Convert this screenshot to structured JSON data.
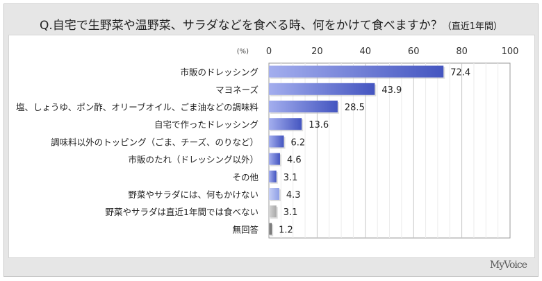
{
  "title": {
    "main": "Q.自宅で生野菜や温野菜、サラダなどを食べる時、何をかけて食べますか？",
    "sub": "（直近1年間）"
  },
  "logo": "MyVoice",
  "chart_data": {
    "type": "bar",
    "orientation": "horizontal",
    "unit_label": "(%)",
    "xlim": [
      0,
      100
    ],
    "ticks": [
      "0",
      "20",
      "40",
      "60",
      "80",
      "100"
    ],
    "categories": [
      "市販のドレッシング",
      "マヨネーズ",
      "塩、しょうゆ、ポン酢、オリーブオイル、ごま油などの調味料",
      "自宅で作ったドレッシング",
      "調味料以外のトッピング（ごま、チーズ、のりなど）",
      "市販のたれ（ドレッシング以外）",
      "その他",
      "野菜やサラダには、何もかけない",
      "野菜やサラダは直近1年間では食べない",
      "無回答"
    ],
    "values": [
      72.4,
      43.9,
      28.5,
      13.6,
      6.2,
      4.6,
      3.1,
      4.3,
      3.1,
      1.2
    ],
    "labels": [
      "72.4",
      "43.9",
      "28.5",
      "13.6",
      "6.2",
      "4.6",
      "3.1",
      "4.3",
      "3.1",
      "1.2"
    ],
    "colors": [
      "#5566cc",
      "#5566cc",
      "#5566cc",
      "#5566cc",
      "#5566cc",
      "#5566cc",
      "#5566cc",
      "#9aaae8",
      "#b8b8b8",
      "#888888"
    ],
    "grid": true
  }
}
